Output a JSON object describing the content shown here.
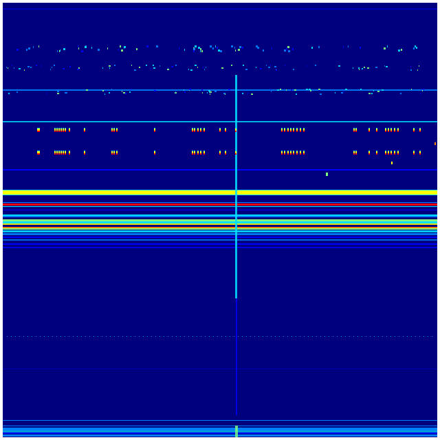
{
  "heatmap": {
    "background_color": "#00007f",
    "colormap": [
      "#00007f",
      "#0000ff",
      "#0080ff",
      "#00e0ff",
      "#7fff7f",
      "#ffff00",
      "#ff8000",
      "#ff0000",
      "#7f0000"
    ]
  }
}
